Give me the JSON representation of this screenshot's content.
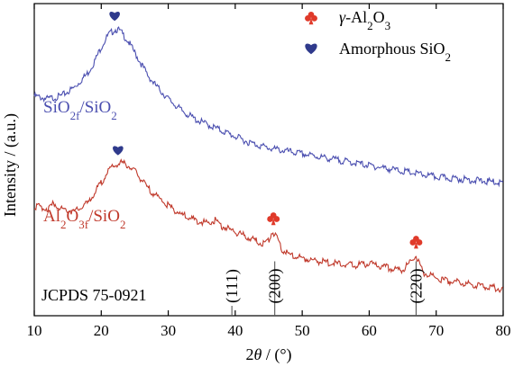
{
  "chart_data": {
    "type": "line",
    "xlabel": {
      "prefix": "2",
      "var": "θ",
      "unit": " / (°)"
    },
    "ylabel": "Intensity / (a.u.)",
    "xlim": [
      10,
      80
    ],
    "xticks": [
      10,
      20,
      30,
      40,
      50,
      60,
      70,
      80
    ],
    "y_ticks_shown": false,
    "series": [
      {
        "name_parts": {
          "base": "SiO",
          "s1": "2f",
          "mid": "/SiO",
          "s2": "2"
        },
        "color": "#4b4fb0",
        "x": [
          10,
          12,
          14,
          16,
          18,
          19,
          20,
          21,
          22,
          22.5,
          23,
          24,
          25,
          26,
          27,
          28,
          30,
          32,
          34,
          36,
          38,
          40,
          42,
          45,
          50,
          55,
          60,
          65,
          70,
          75,
          80
        ],
        "y": [
          0.8,
          0.79,
          0.8,
          0.83,
          0.88,
          0.92,
          0.97,
          1.01,
          1.03,
          1.03,
          1.02,
          0.99,
          0.95,
          0.91,
          0.87,
          0.84,
          0.79,
          0.75,
          0.72,
          0.7,
          0.68,
          0.66,
          0.64,
          0.62,
          0.6,
          0.58,
          0.56,
          0.54,
          0.52,
          0.51,
          0.5
        ]
      },
      {
        "name_parts": {
          "base": "Al",
          "s1": "2",
          "mid": "O",
          "s2": "3f",
          "tail": "/SiO",
          "s3": "2"
        },
        "color": "#c0392b",
        "x": [
          10,
          12,
          13,
          14,
          16,
          18,
          20,
          21,
          22,
          23,
          24,
          25,
          26,
          27,
          28,
          30,
          32,
          34,
          36,
          37,
          38,
          40,
          42,
          44,
          45,
          45.5,
          46,
          47,
          48,
          50,
          52,
          55,
          58,
          60,
          62,
          64,
          65,
          66,
          66.5,
          67,
          67.5,
          68,
          69,
          70,
          72,
          75,
          78,
          80
        ],
        "y": [
          0.42,
          0.41,
          0.43,
          0.41,
          0.4,
          0.43,
          0.5,
          0.54,
          0.56,
          0.57,
          0.56,
          0.54,
          0.51,
          0.48,
          0.46,
          0.42,
          0.39,
          0.37,
          0.36,
          0.37,
          0.35,
          0.33,
          0.31,
          0.29,
          0.3,
          0.33,
          0.32,
          0.27,
          0.25,
          0.24,
          0.23,
          0.22,
          0.215,
          0.22,
          0.21,
          0.2,
          0.2,
          0.22,
          0.24,
          0.245,
          0.22,
          0.19,
          0.18,
          0.17,
          0.16,
          0.15,
          0.14,
          0.13
        ]
      }
    ],
    "legend": {
      "placement": "top-right",
      "items": [
        {
          "symbol": "club",
          "color": "#e03a2a",
          "label_parts": {
            "italic": "γ",
            "rest": "-Al",
            "s1": "2",
            "mid": "O",
            "s2": "3"
          }
        },
        {
          "symbol": "heart",
          "color": "#2f3a8c",
          "label_parts": {
            "base": "Amorphous SiO",
            "s1": "2"
          }
        }
      ]
    },
    "markers": [
      {
        "symbol": "heart",
        "color": "#2f3a8c",
        "x": 22,
        "series": 0
      },
      {
        "symbol": "heart",
        "color": "#2f3a8c",
        "x": 22.5,
        "series": 1
      },
      {
        "symbol": "club",
        "color": "#e03a2a",
        "x": 45.7,
        "series": 1
      },
      {
        "symbol": "club",
        "color": "#e03a2a",
        "x": 67,
        "series": 1
      }
    ],
    "reference": {
      "label": "JCPDS 75-0921",
      "lines": [
        {
          "x": 39.5,
          "height": 0.1,
          "hkl": "(111)"
        },
        {
          "x": 45.9,
          "height": 0.55,
          "hkl": "(200)"
        },
        {
          "x": 67.0,
          "height": 0.55,
          "hkl": "(220)"
        }
      ]
    }
  }
}
